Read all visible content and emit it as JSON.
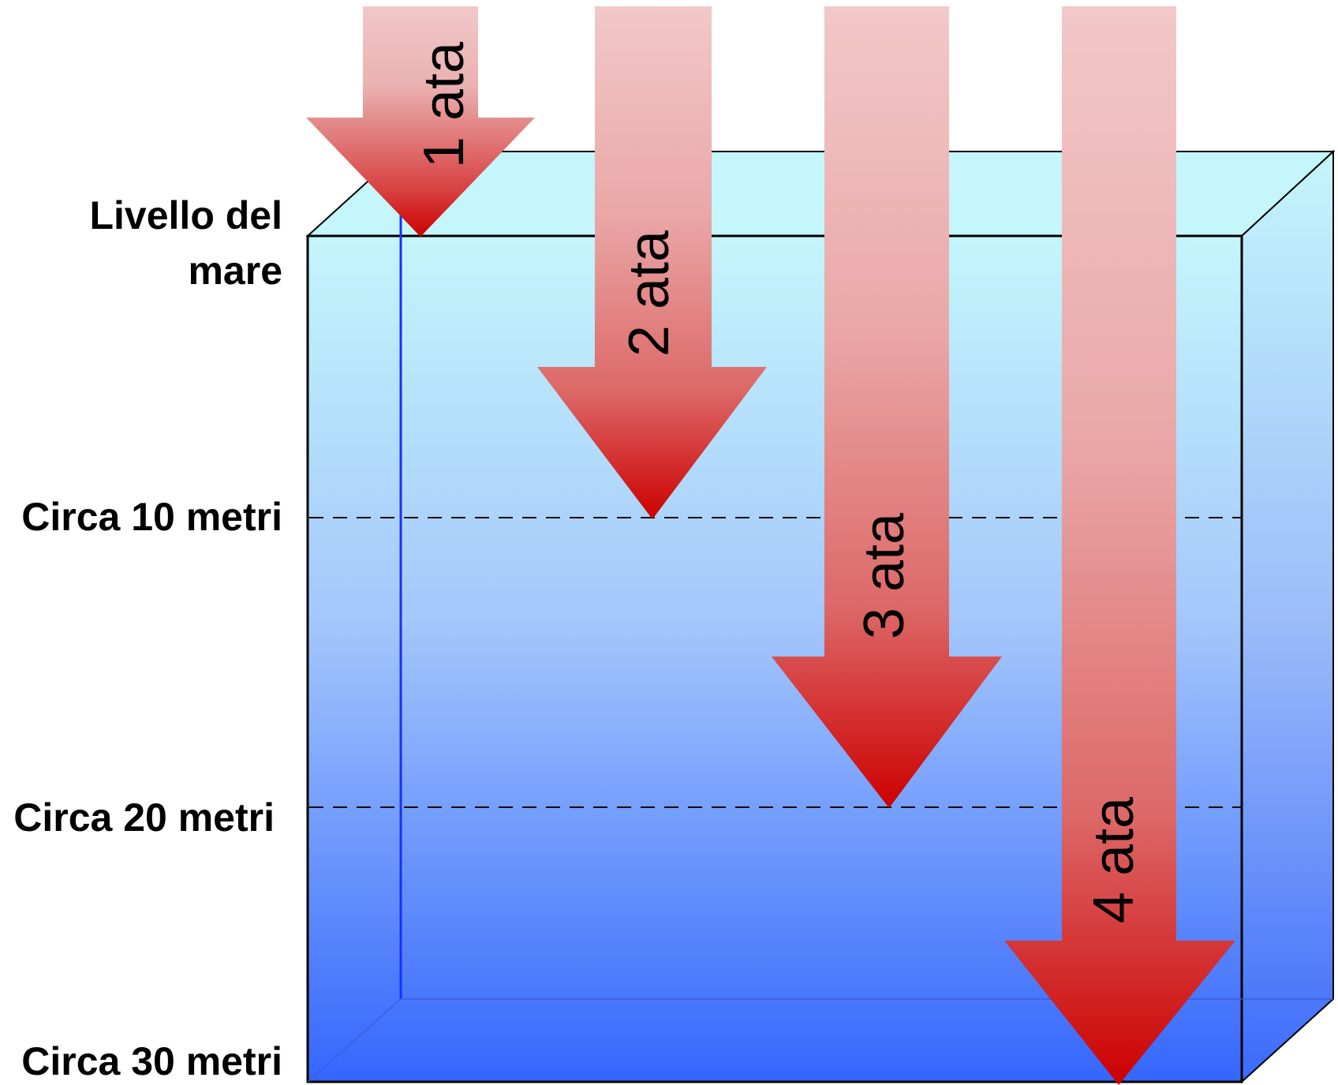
{
  "depth_labels": {
    "sea_level_line1": "Livello del",
    "sea_level_line2": "mare",
    "depth_10": "Circa 10 metri",
    "depth_20": "Circa 20 metri",
    "depth_30": "Circa 30 metri"
  },
  "arrows": [
    {
      "label": "1 ata"
    },
    {
      "label": "2 ata"
    },
    {
      "label": "3 ata"
    },
    {
      "label": "4 ata"
    }
  ],
  "colors": {
    "water_top": "#c4f6fb",
    "water_bottom": "#3566fd",
    "arrow_top": "#f2c8c8",
    "arrow_bottom": "#cc0000",
    "outline": "#000000",
    "back_edge": "#1a2fff"
  }
}
